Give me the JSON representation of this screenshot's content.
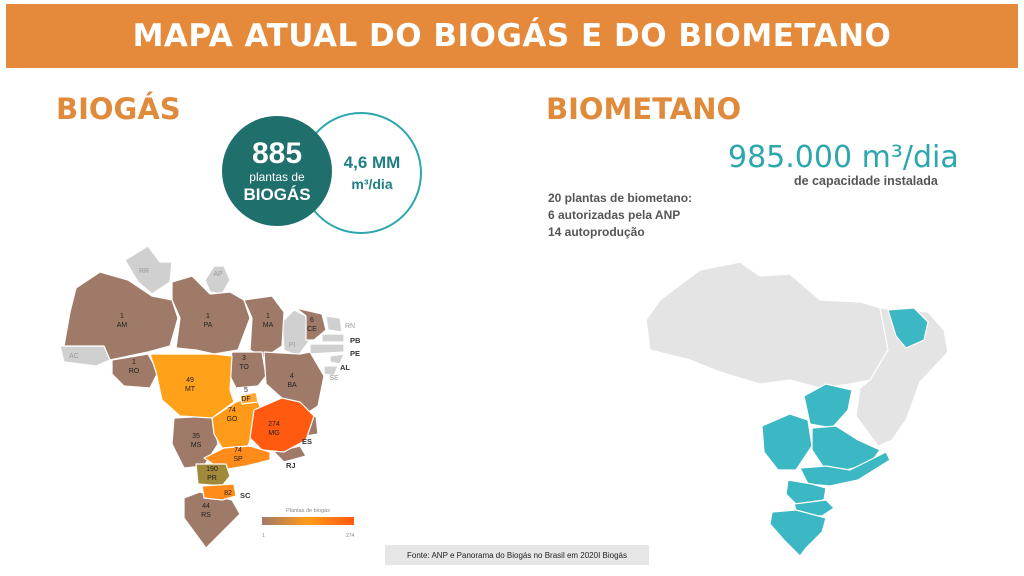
{
  "title": "MAPA ATUAL DO BIOGÁS E DO BIOMETANO",
  "biogas": {
    "heading": "BIOGÁS",
    "plants_count": "885",
    "plants_line1": "plantas de",
    "plants_line2": "BIOGÁS",
    "capacity_value": "4,6 MM",
    "capacity_unit": "m³/dia",
    "map_states": [
      {
        "state": "AM",
        "count": "1"
      },
      {
        "state": "PA",
        "count": "1"
      },
      {
        "state": "MA",
        "count": "1"
      },
      {
        "state": "CE",
        "count": "6"
      },
      {
        "state": "RO",
        "count": "1"
      },
      {
        "state": "MT",
        "count": "49"
      },
      {
        "state": "TO",
        "count": "3"
      },
      {
        "state": "BA",
        "count": "4"
      },
      {
        "state": "DF",
        "count": "5"
      },
      {
        "state": "GO",
        "count": "74"
      },
      {
        "state": "MG",
        "count": "274"
      },
      {
        "state": "MS",
        "count": "35"
      },
      {
        "state": "SP",
        "count": "74"
      },
      {
        "state": "PR",
        "count": "190"
      },
      {
        "state": "SC",
        "count": "82"
      },
      {
        "state": "RS",
        "count": "44"
      }
    ],
    "grey_labels": [
      "RR",
      "AP",
      "AC",
      "PI",
      "RN",
      "PB",
      "PE",
      "AL",
      "SE",
      "ES",
      "RJ"
    ],
    "legend_title": "Plantas de biogás",
    "legend_min": "1",
    "legend_max": "274",
    "colors": {
      "brown": "#a07a68",
      "orange_light": "#ffa21a",
      "orange_mid": "#ff8c1a",
      "orange_dark": "#ff5a0f",
      "olive": "#a08a3a",
      "grey": "#d0d0d0"
    }
  },
  "biometano": {
    "heading": "BIOMETANO",
    "capacity": "985.000 m³/dia",
    "capacity_sub": "de capacidade instalada",
    "info_lines": [
      "20 plantas de biometano:",
      "6 autorizadas pela ANP",
      "14 autoprodução"
    ],
    "colors": {
      "highlight": "#3bb8c3",
      "base": "#e4e4e4"
    }
  },
  "source": "Fonte: ANP e Panorama do Biogás no Brasil em 2020I Biogás"
}
